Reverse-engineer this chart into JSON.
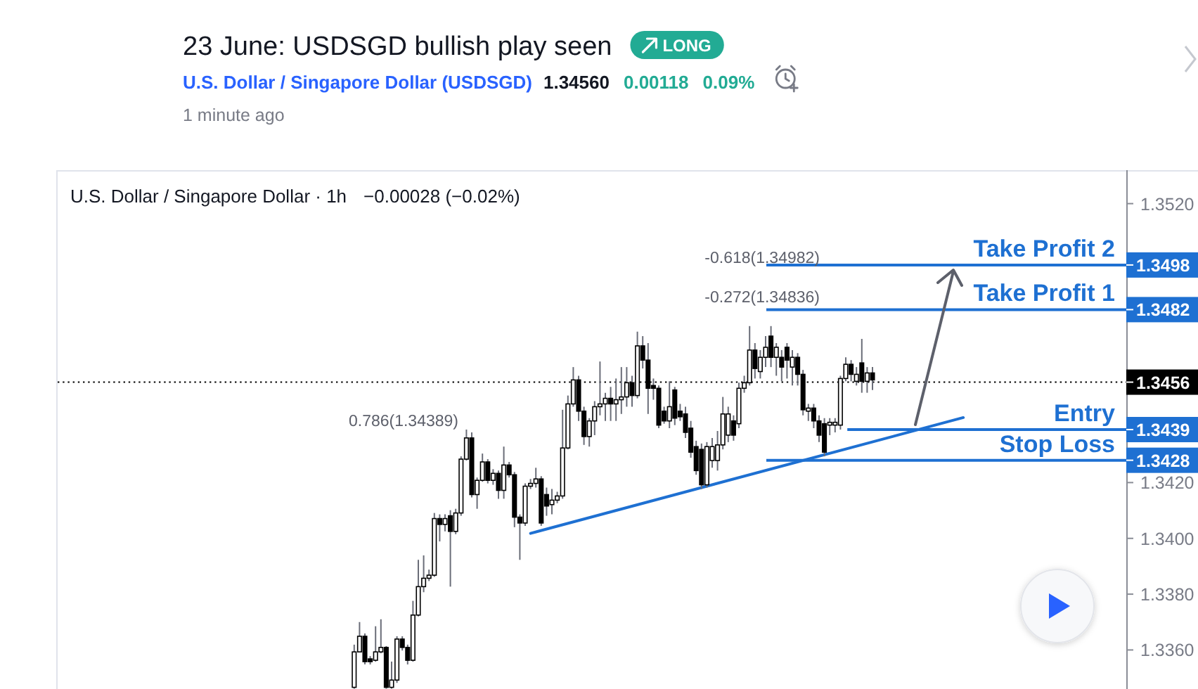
{
  "chart_data": {
    "type": "candlestick",
    "title": "23 June: USDSGD bullish play seen",
    "subtitle": "U.S. Dollar / Singapore Dollar (USDSGD)",
    "annotations": [
      "LONG",
      "1.34560",
      "0.00118",
      "0.09%",
      "1 minute ago",
      "U.S. Dollar / Singapore Dollar · 1h",
      "−0.00028 (−0.02%)",
      "-0.618(1.34982)",
      "-0.272(1.34836)",
      "0.786(1.34389)"
    ],
    "categories": [
      null,
      null,
      null,
      null,
      null,
      null,
      null,
      null,
      null,
      null,
      null,
      null,
      null,
      null,
      null,
      null,
      null,
      null,
      null,
      null,
      null,
      null,
      null,
      null,
      null,
      null,
      null,
      null,
      null,
      null,
      null,
      null,
      null,
      null,
      null,
      null,
      null,
      null,
      null,
      null,
      null,
      null,
      null,
      null,
      null,
      null,
      null,
      null,
      null,
      null,
      null,
      null,
      null,
      null,
      null,
      null,
      null,
      null,
      null,
      null,
      null,
      null,
      null,
      null,
      null,
      null,
      null,
      null,
      null,
      null,
      null,
      null,
      null,
      null,
      null,
      null,
      null,
      null,
      null,
      null,
      null,
      null,
      null,
      null,
      null,
      null,
      null,
      null,
      null,
      null,
      null,
      null,
      null,
      null,
      null,
      null,
      null,
      null,
      null,
      null,
      null,
      null,
      null,
      null,
      null,
      null,
      null,
      null,
      null,
      null,
      null,
      null,
      null,
      null,
      null,
      null,
      null,
      null,
      null,
      null,
      null,
      null,
      null,
      null,
      null,
      null,
      null,
      null,
      null,
      null,
      null,
      null,
      null,
      null,
      null,
      null,
      null,
      null,
      null,
      null,
      null,
      null,
      null,
      null,
      null,
      null,
      null,
      null,
      null,
      null,
      null,
      null,
      null,
      null,
      null,
      null,
      null,
      null,
      null,
      null,
      null,
      null,
      null,
      null,
      null,
      null,
      null,
      null,
      null,
      null,
      null,
      null,
      null,
      null,
      null,
      null,
      null,
      null,
      null,
      null,
      null,
      null,
      null,
      null,
      null,
      null,
      null,
      null,
      null,
      null,
      null,
      null,
      null,
      null,
      null,
      null,
      null,
      null,
      null,
      null
    ],
    "ohlc": [
      null,
      null,
      null,
      null,
      null,
      null,
      null,
      null,
      null,
      null,
      null,
      null,
      null,
      null,
      null,
      null,
      null,
      null,
      null,
      null,
      null,
      null,
      null,
      null,
      null,
      null,
      null,
      null,
      null,
      null,
      null,
      null,
      null,
      null,
      null,
      null,
      null,
      null,
      null,
      null,
      null,
      null,
      null,
      null,
      null,
      null,
      null,
      null,
      null,
      null,
      null,
      null,
      null,
      null,
      null,
      [
        1.33466,
        1.33619,
        1.33461,
        1.33593
      ],
      [
        1.33593,
        1.337,
        1.33593,
        1.33649
      ],
      [
        1.33649,
        1.33659,
        1.33548,
        1.33558
      ],
      [
        1.33568,
        1.33578,
        1.33548,
        1.33558
      ],
      [
        1.33563,
        1.33685,
        1.33558,
        1.33593
      ],
      [
        1.33593,
        1.3371,
        1.33588,
        1.33609
      ],
      [
        1.33609,
        1.33614,
        1.33461,
        1.33466
      ],
      [
        1.33466,
        1.33558,
        1.33461,
        1.33492
      ],
      [
        1.33492,
        1.33649,
        1.33482,
        1.33639
      ],
      [
        1.33639,
        1.33649,
        1.33598,
        1.33609
      ],
      [
        1.33609,
        1.33619,
        1.33548,
        1.33563
      ],
      [
        1.33563,
        1.33776,
        1.33558,
        1.33725
      ],
      [
        1.33725,
        1.33923,
        1.3372,
        1.33827
      ],
      [
        1.33827,
        1.33939,
        1.33807,
        1.33857
      ],
      [
        1.33857,
        1.33888,
        1.33847,
        1.33868
      ],
      [
        1.33868,
        1.34091,
        1.33862,
        1.34071
      ],
      [
        1.34071,
        1.34086,
        1.33989,
        1.3405
      ],
      [
        1.3405,
        1.34086,
        1.34025,
        1.34071
      ],
      [
        1.34081,
        1.34101,
        1.33827,
        1.34025
      ],
      [
        1.34025,
        1.34106,
        1.34015,
        1.34091
      ],
      [
        1.34091,
        1.34294,
        1.34081,
        1.34284
      ],
      [
        1.34284,
        1.3439,
        1.34279,
        1.3436
      ],
      [
        1.3436,
        1.3438,
        1.34147,
        1.34157
      ],
      [
        1.34157,
        1.34218,
        1.34106,
        1.34208
      ],
      [
        1.34208,
        1.34304,
        1.34203,
        1.34274
      ],
      [
        1.34274,
        1.34284,
        1.34197,
        1.34208
      ],
      [
        1.34208,
        1.34248,
        1.34192,
        1.34233
      ],
      [
        1.34233,
        1.34243,
        1.34142,
        1.34172
      ],
      [
        1.34172,
        1.34329,
        1.34142,
        1.34263
      ],
      [
        1.34263,
        1.34274,
        1.34218,
        1.34228
      ],
      [
        1.34228,
        1.34238,
        1.3404,
        1.34076
      ],
      [
        1.34076,
        1.34086,
        1.33923,
        1.34055
      ],
      [
        1.34055,
        1.34197,
        1.34045,
        1.34187
      ],
      [
        1.34187,
        1.34213,
        1.34177,
        1.34197
      ],
      [
        1.34197,
        1.34253,
        1.34182,
        1.34213
      ],
      [
        1.34213,
        1.34223,
        1.34045,
        1.34055
      ],
      [
        1.34157,
        1.34182,
        1.34081,
        1.34116
      ],
      [
        1.34121,
        1.34177,
        1.34086,
        1.34137
      ],
      [
        1.34137,
        1.34167,
        1.34126,
        1.34152
      ],
      [
        1.34152,
        1.34461,
        1.34142,
        1.34324
      ],
      [
        1.34324,
        1.34512,
        1.34319,
        1.34482
      ],
      [
        1.34482,
        1.34614,
        1.34472,
        1.34568
      ],
      [
        1.34568,
        1.34583,
        1.34421,
        1.34456
      ],
      [
        1.34456,
        1.34472,
        1.34335,
        1.34365
      ],
      [
        1.34365,
        1.34431,
        1.34329,
        1.34421
      ],
      [
        1.34421,
        1.34492,
        1.3437,
        1.34472
      ],
      [
        1.34472,
        1.34634,
        1.34441,
        1.34482
      ],
      [
        1.34482,
        1.34522,
        1.34421,
        1.34502
      ],
      [
        1.34502,
        1.34543,
        1.34421,
        1.34482
      ],
      [
        1.34482,
        1.34573,
        1.34421,
        1.34497
      ],
      [
        1.34497,
        1.34614,
        1.34446,
        1.34507
      ],
      [
        1.34507,
        1.34614,
        1.34472,
        1.34558
      ],
      [
        1.34558,
        1.34583,
        1.34472,
        1.34512
      ],
      [
        1.34512,
        1.34741,
        1.34502,
        1.3469
      ],
      [
        1.3469,
        1.34725,
        1.34609,
        1.34639
      ],
      [
        1.34639,
        1.347,
        1.34446,
        1.34538
      ],
      [
        1.34548,
        1.34573,
        1.34497,
        1.34538
      ],
      [
        1.34538,
        1.34548,
        1.34395,
        1.34406
      ],
      [
        1.34456,
        1.34472,
        1.34411,
        1.34421
      ],
      [
        1.34421,
        1.34563,
        1.34395,
        1.34472
      ],
      [
        1.34532,
        1.34543,
        1.34406,
        1.34431
      ],
      [
        1.34456,
        1.34482,
        1.34421,
        1.34436
      ],
      [
        1.34446,
        1.34472,
        1.3436,
        1.3438
      ],
      [
        1.34395,
        1.34421,
        1.34289,
        1.34309
      ],
      [
        1.34329,
        1.3435,
        1.34228,
        1.34243
      ],
      [
        1.34319,
        1.3434,
        1.34177,
        1.34192
      ],
      [
        1.34192,
        1.34345,
        1.34182,
        1.34329
      ],
      [
        1.34279,
        1.3436,
        1.34253,
        1.34329
      ],
      [
        1.34279,
        1.34385,
        1.34243,
        1.34335
      ],
      [
        1.34335,
        1.34507,
        1.34319,
        1.34446
      ],
      [
        1.3437,
        1.34472,
        1.34345,
        1.34446
      ],
      [
        1.34421,
        1.34441,
        1.3435,
        1.3437
      ],
      [
        1.34411,
        1.34558,
        1.34395,
        1.34538
      ],
      [
        1.34538,
        1.34583,
        1.34522,
        1.34558
      ],
      [
        1.34558,
        1.34761,
        1.34548,
        1.34675
      ],
      [
        1.34675,
        1.347,
        1.34573,
        1.34609
      ],
      [
        1.34598,
        1.34675,
        1.34573,
        1.34649
      ],
      [
        1.34649,
        1.34725,
        1.34614,
        1.34685
      ],
      [
        1.34725,
        1.34761,
        1.34614,
        1.34649
      ],
      [
        1.34649,
        1.347,
        1.34583,
        1.34685
      ],
      [
        1.34649,
        1.34675,
        1.34563,
        1.34614
      ],
      [
        1.34685,
        1.347,
        1.34573,
        1.34639
      ],
      [
        1.34614,
        1.34675,
        1.34548,
        1.34649
      ],
      [
        1.34649,
        1.34664,
        1.34548,
        1.34588
      ],
      [
        1.34588,
        1.34604,
        1.34441,
        1.34461
      ],
      [
        1.34456,
        1.34482,
        1.34421,
        1.34467
      ],
      [
        1.34467,
        1.34482,
        1.34395,
        1.34421
      ],
      [
        1.34421,
        1.34441,
        1.34345,
        1.3437
      ],
      [
        1.34411,
        1.34431,
        1.34294,
        1.34309
      ],
      [
        1.34406,
        1.34431,
        1.3437,
        1.34416
      ],
      [
        1.34406,
        1.34431,
        1.3438,
        1.34416
      ],
      [
        1.34406,
        1.34583,
        1.3439,
        1.34573
      ],
      [
        1.34573,
        1.34649,
        1.34563,
        1.34624
      ],
      [
        1.34624,
        1.34639,
        1.34563,
        1.34588
      ],
      [
        1.34563,
        1.34614,
        1.34548,
        1.34588
      ],
      [
        1.34629,
        1.34715,
        1.34522,
        1.34563
      ],
      [
        1.34563,
        1.34614,
        1.34522,
        1.34593
      ],
      [
        1.34593,
        1.34614,
        1.34532,
        1.34568
      ],
      null,
      null,
      null,
      null,
      null,
      null,
      null,
      null,
      null,
      null,
      null,
      null,
      null,
      null,
      null,
      null,
      null,
      null,
      null,
      null,
      null,
      null,
      null,
      null,
      null,
      null,
      null,
      null,
      null,
      null,
      null,
      null,
      null,
      null,
      null,
      null,
      null,
      null,
      null,
      null,
      null,
      null,
      null,
      null,
      null,
      null,
      null
    ],
    "series": [
      {
        "type": "line",
        "color": "#1e70d2",
        "values": [
          null,
          null,
          null,
          null,
          null,
          null,
          null,
          null,
          null,
          null,
          null,
          null,
          null,
          null,
          null,
          null,
          null,
          null,
          null,
          null,
          null,
          null,
          null,
          null,
          null,
          null,
          null,
          null,
          null,
          null,
          null,
          null,
          null,
          null,
          null,
          null,
          null,
          null,
          null,
          null,
          null,
          null,
          null,
          null,
          null,
          null,
          null,
          null,
          null,
          null,
          null,
          null,
          null,
          null,
          null,
          null,
          null,
          null,
          null,
          null,
          null,
          null,
          null,
          null,
          null,
          null,
          null,
          null,
          null,
          null,
          null,
          null,
          null,
          null,
          null,
          null,
          null,
          null,
          null,
          null,
          null,
          null,
          null,
          null,
          null,
          null,
          null,
          null,
          1.34018,
          null,
          null,
          null,
          null,
          null,
          null,
          null,
          null,
          null,
          null,
          null,
          null,
          null,
          null,
          null,
          null,
          null,
          null,
          null,
          null,
          null,
          null,
          null,
          null,
          null,
          null,
          null,
          null,
          null,
          null,
          null,
          null,
          null,
          null,
          null,
          null,
          null,
          null,
          null,
          null,
          null,
          null,
          null,
          null,
          null,
          null,
          null,
          null,
          null,
          null,
          null,
          null,
          null,
          null,
          null,
          null,
          null,
          null,
          null,
          null,
          null,
          null,
          null,
          null,
          null,
          null,
          null,
          null,
          null,
          null,
          null,
          null,
          null,
          null,
          null,
          null,
          null,
          null,
          null,
          null,
          1.34433,
          null,
          null,
          null,
          null,
          null,
          null,
          null,
          null,
          null,
          null,
          null,
          null,
          null,
          null,
          null,
          null,
          null,
          null,
          null,
          null,
          null,
          null,
          null,
          null,
          null,
          null,
          null,
          null,
          null,
          null
        ]
      }
    ],
    "ref_lines": [
      {
        "axis": "y",
        "value": 1.3498,
        "label": "Take Profit 2",
        "color": "#1e70d2"
      },
      {
        "axis": "y",
        "value": 1.3482,
        "label": "Take Profit 1",
        "color": "#1e70d2"
      },
      {
        "axis": "y",
        "value": 1.3456,
        "color": "#000000",
        "line_style": "dotted"
      },
      {
        "axis": "y",
        "value": 1.3439,
        "label": "Entry",
        "color": "#1e70d2"
      },
      {
        "axis": "y",
        "value": 1.3428,
        "label": "Stop Loss",
        "color": "#1e70d2"
      }
    ],
    "ylim": [
      1.3346,
      1.3532
    ],
    "yticks": [
      {
        "value": 1.336,
        "label": "1.3360"
      },
      {
        "value": 1.338,
        "label": "1.3380"
      },
      {
        "value": 1.34,
        "label": "1.3400"
      },
      {
        "value": 1.342,
        "label": "1.3420"
      },
      1.3428,
      1.3439,
      1.3456,
      1.3482,
      1.3498,
      {
        "value": 1.352,
        "label": "1.3520"
      }
    ],
    "tick_labels": "y"
  }
}
